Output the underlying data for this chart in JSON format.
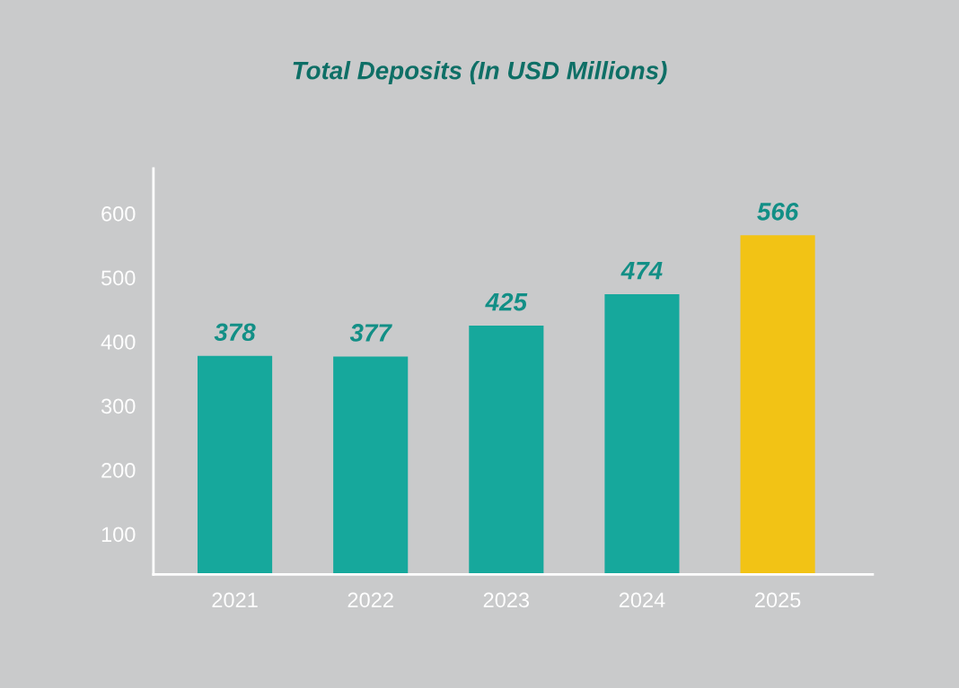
{
  "chart_data": {
    "type": "bar",
    "title": "Total Deposits (In USD Millions)",
    "categories": [
      "2021",
      "2022",
      "2023",
      "2024",
      "2025"
    ],
    "values": [
      378,
      377,
      425,
      474,
      566
    ],
    "colors": [
      "#16a89c",
      "#16a89c",
      "#16a89c",
      "#16a89c",
      "#f2c315"
    ],
    "ylim": [
      37,
      670
    ],
    "yticks": [
      100,
      200,
      300,
      400,
      500,
      600
    ],
    "data_labels": true,
    "grid": false,
    "legend": false
  }
}
